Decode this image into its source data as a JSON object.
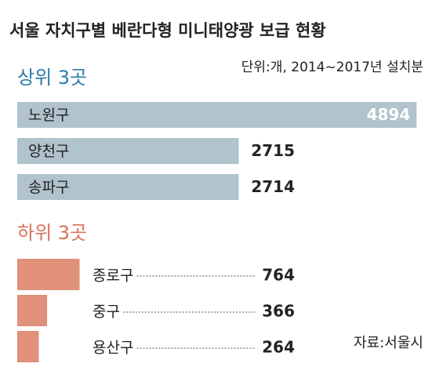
{
  "title": "서울 자치구별 베란다형 미니태양광 보급 현황",
  "note": "단위:개, 2014~2017년 설치분",
  "source": "자료:서울시",
  "chart_data": [
    {
      "type": "bar",
      "title": "상위 3곳",
      "title_color": "#2a7bab",
      "categories": [
        "노원구",
        "양천구",
        "송파구"
      ],
      "values": [
        4894,
        2715,
        2714
      ],
      "color": "#b1c3cd",
      "xlim": [
        0,
        4900
      ],
      "label_position": "inside"
    },
    {
      "type": "bar",
      "title": "하위 3곳",
      "title_color": "#d9735a",
      "categories": [
        "종로구",
        "중구",
        "용산구"
      ],
      "values": [
        764,
        366,
        264
      ],
      "color": "#e19079",
      "xlim": [
        0,
        4900
      ],
      "label_position": "outside"
    }
  ]
}
